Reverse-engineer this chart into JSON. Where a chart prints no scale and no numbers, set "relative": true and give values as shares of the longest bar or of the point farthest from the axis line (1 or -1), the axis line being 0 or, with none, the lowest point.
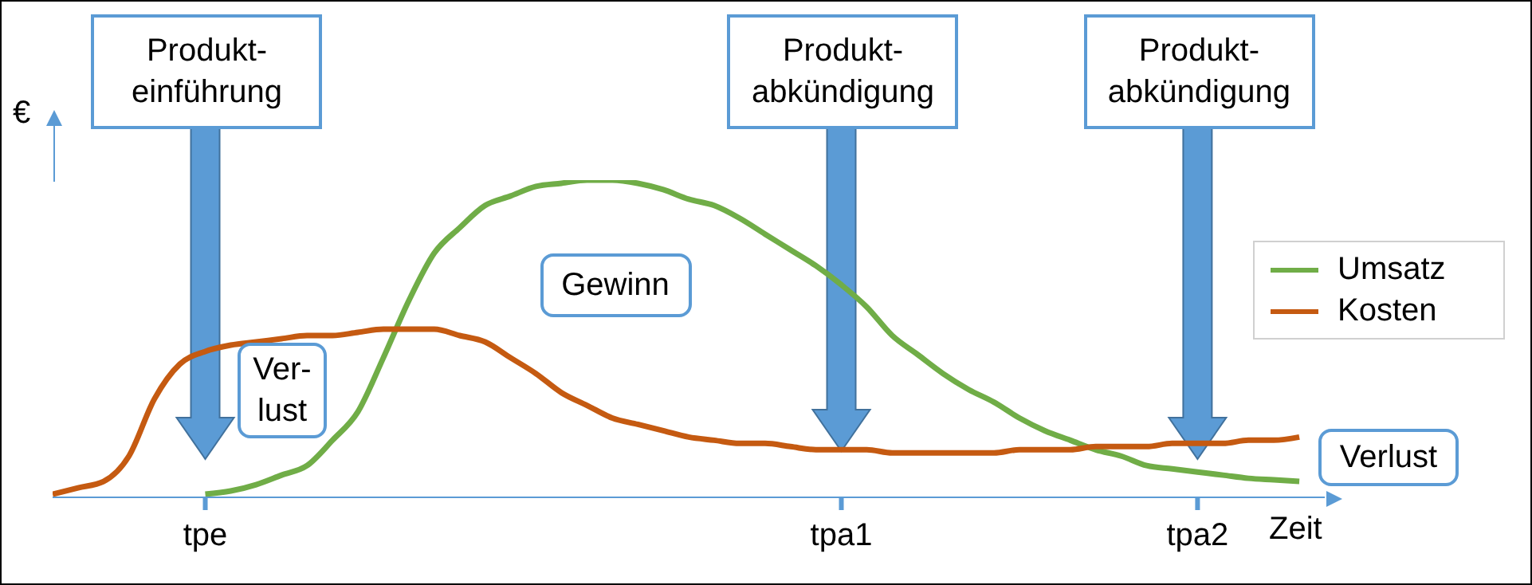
{
  "chart_data": {
    "type": "line",
    "relative": true,
    "ylabel": "€",
    "xlabel": "Zeit",
    "categories": [
      null,
      null,
      null,
      null,
      null,
      null,
      "tpe",
      null,
      null,
      null,
      null,
      null,
      null,
      null,
      null,
      null,
      null,
      null,
      null,
      null,
      null,
      null,
      null,
      null,
      null,
      null,
      null,
      null,
      null,
      null,
      null,
      "tpa1",
      null,
      null,
      null,
      null,
      null,
      null,
      null,
      null,
      null,
      null,
      null,
      null,
      null,
      "tpa2",
      null,
      null,
      null,
      null,
      null
    ],
    "series": [
      {
        "name": "Umsatz",
        "color": "#70ad47",
        "values": [
          null,
          null,
          null,
          null,
          null,
          null,
          0.01,
          0.02,
          0.04,
          0.07,
          0.1,
          0.18,
          0.27,
          0.44,
          0.62,
          0.77,
          0.85,
          0.92,
          0.95,
          0.98,
          0.99,
          1.0,
          1.0,
          0.99,
          0.97,
          0.94,
          0.92,
          0.88,
          0.83,
          0.78,
          0.73,
          0.67,
          0.6,
          0.51,
          0.45,
          0.39,
          0.34,
          0.3,
          0.25,
          0.21,
          0.18,
          0.15,
          0.13,
          0.1,
          0.09,
          0.08,
          0.07,
          0.06,
          0.055,
          0.05,
          null
        ]
      },
      {
        "name": "Kosten",
        "color": "#c55a11",
        "values": [
          0.01,
          0.03,
          0.05,
          0.13,
          0.31,
          0.42,
          0.46,
          0.48,
          0.49,
          0.5,
          0.51,
          0.51,
          0.52,
          0.53,
          0.53,
          0.53,
          0.51,
          0.49,
          0.44,
          0.39,
          0.33,
          0.29,
          0.25,
          0.23,
          0.21,
          0.19,
          0.18,
          0.17,
          0.17,
          0.16,
          0.15,
          0.15,
          0.15,
          0.14,
          0.14,
          0.14,
          0.14,
          0.14,
          0.15,
          0.15,
          0.15,
          0.16,
          0.16,
          0.16,
          0.17,
          0.17,
          0.17,
          0.18,
          0.18,
          0.19,
          null
        ]
      }
    ],
    "annotations": [
      "Produkt-\neinführung",
      "Produkt-\nabkündigung",
      "Produkt-\nabkündigung",
      "Gewinn",
      "Ver-\nlust",
      "Verlust"
    ],
    "legend": "right",
    "grid": false,
    "marker": "none",
    "line_style": "solid"
  }
}
